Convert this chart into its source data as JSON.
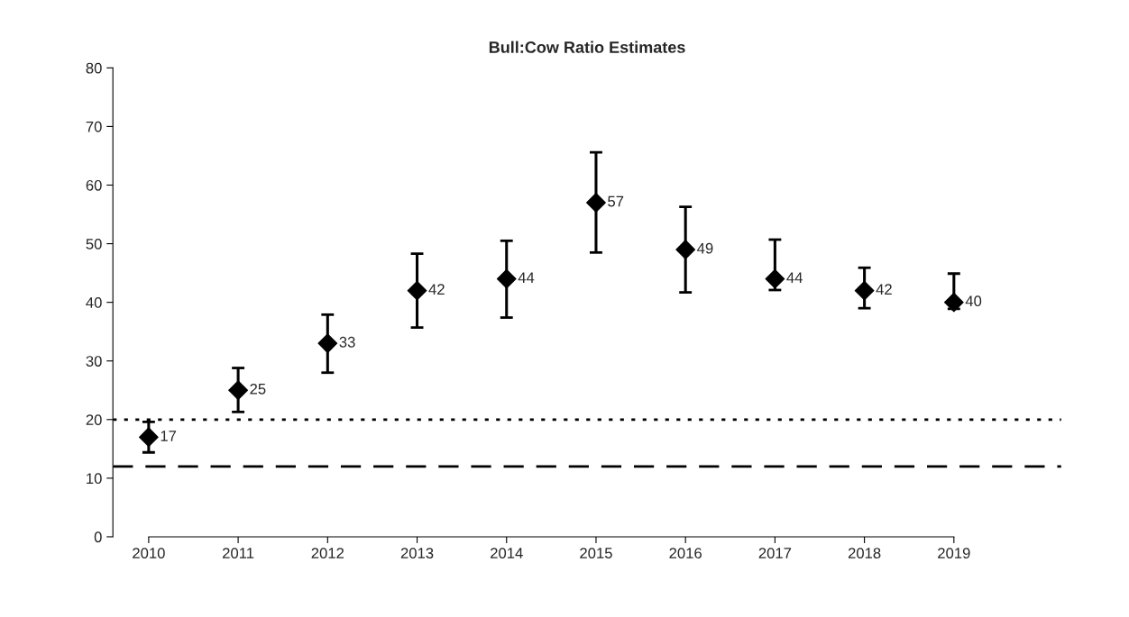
{
  "chart_data": {
    "type": "scatter",
    "title": "Bull:Cow Ratio Estimates",
    "categories": [
      "2010",
      "2011",
      "2012",
      "2013",
      "2014",
      "2015",
      "2016",
      "2017",
      "2018",
      "2019"
    ],
    "values": [
      17,
      25,
      33,
      42,
      44,
      57,
      49,
      44,
      42,
      40
    ],
    "errors": [
      [
        14.4,
        19.6
      ],
      [
        21.3,
        28.8
      ],
      [
        28.0,
        37.9
      ],
      [
        35.7,
        48.3
      ],
      [
        37.4,
        50.5
      ],
      [
        48.5,
        65.6
      ],
      [
        41.7,
        56.3
      ],
      [
        42.1,
        50.7
      ],
      [
        39.0,
        45.9
      ],
      [
        38.9,
        44.9
      ]
    ],
    "color": "#000000",
    "marker": "diamond",
    "data_labels": true,
    "grid": false,
    "legend": false,
    "ylim": [
      0,
      80
    ],
    "yticks": [
      0,
      10,
      20,
      30,
      40,
      50,
      60,
      70,
      80
    ],
    "ref_lines": [
      {
        "axis": "y",
        "value": 20,
        "line_style": "dotted",
        "color": "#000000"
      },
      {
        "axis": "y",
        "value": 12,
        "line_style": "dashed",
        "color": "#000000"
      }
    ]
  }
}
